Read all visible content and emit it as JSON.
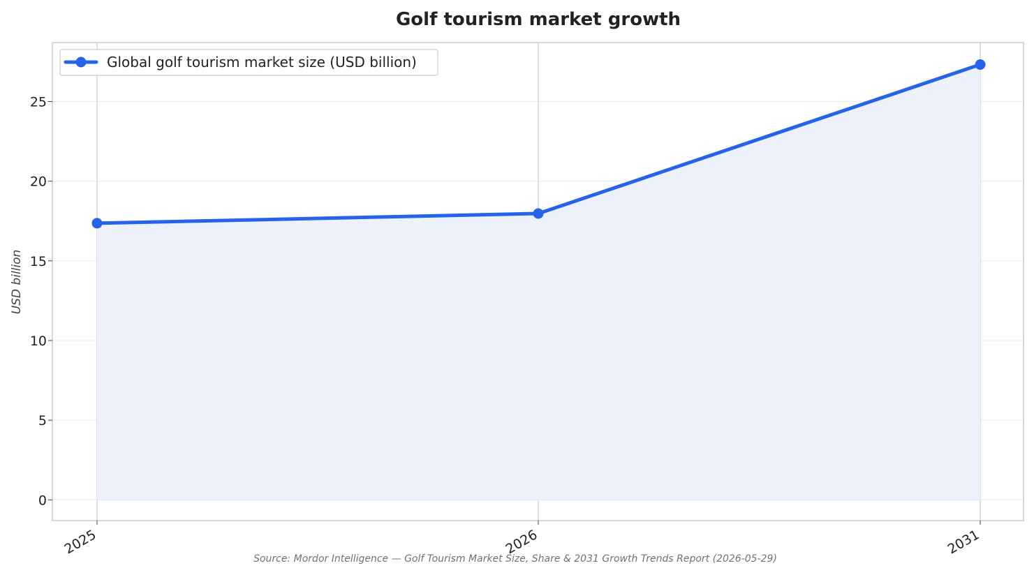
{
  "chart_data": {
    "type": "area",
    "title": "Golf tourism market growth",
    "ylabel": "USD billion",
    "xlabel": "",
    "categories": [
      "2025",
      "2026",
      "2031"
    ],
    "series": [
      {
        "name": "Global golf tourism market size (USD billion)",
        "values": [
          17.36,
          17.97,
          27.32
        ],
        "color": "#2563eb",
        "fill": "#ecf1fc"
      }
    ],
    "y_ticks": [
      "0",
      "5",
      "10",
      "15",
      "20",
      "25"
    ],
    "ylim": [
      -1.3,
      28.7
    ],
    "legend": "top-left",
    "grid": true,
    "source": "Source: Mordor Intelligence — Golf Tourism Market Size, Share & 2031 Growth Trends Report (2026-05-29)"
  }
}
